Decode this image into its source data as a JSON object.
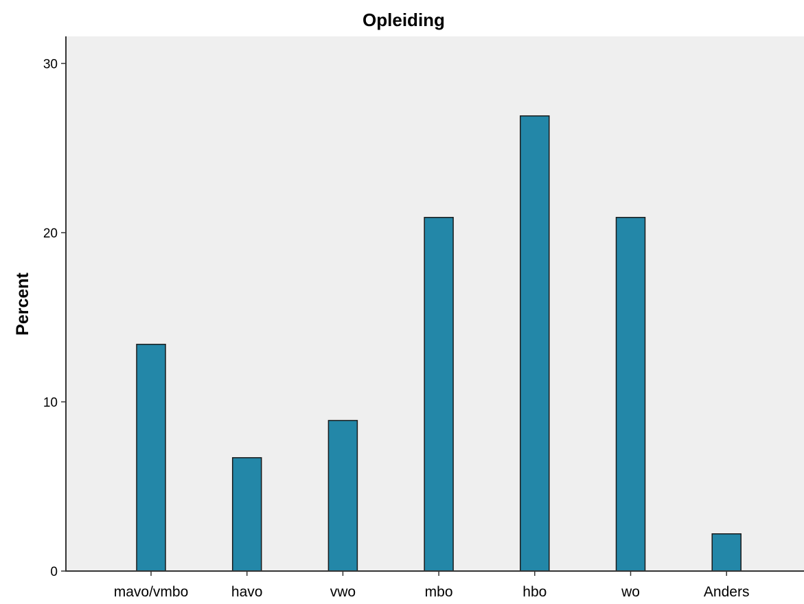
{
  "chart_data": {
    "type": "bar",
    "title": "Opleiding",
    "xlabel": "",
    "ylabel": "Percent",
    "categories": [
      "mavo/vmbo",
      "havo",
      "vwo",
      "mbo",
      "hbo",
      "wo",
      "Anders"
    ],
    "values": [
      13.4,
      6.7,
      8.9,
      20.9,
      26.9,
      20.9,
      2.2
    ],
    "ylim": [
      0,
      31.6
    ],
    "yticks": [
      "0",
      "10",
      "20",
      "30"
    ],
    "grid": false,
    "legend": "none",
    "colors": {
      "bar_fill": "#2387a8",
      "bar_stroke": "#1a1a1a",
      "plot_background": "#efefef",
      "axis": "#333333"
    }
  }
}
